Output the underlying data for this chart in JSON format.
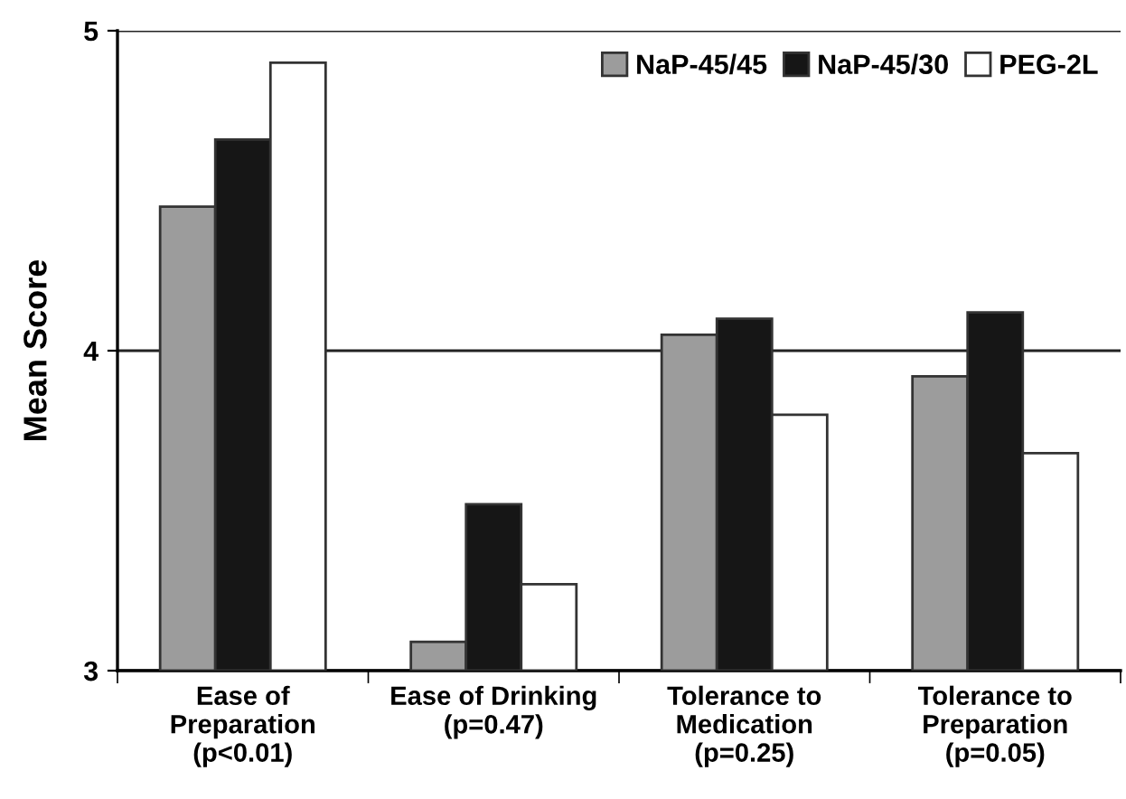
{
  "chart_data": {
    "type": "bar",
    "ylabel": "Mean Score",
    "categories": [
      "Ease of\nPreparation\n(p<0.01)",
      "Ease of Drinking\n(p=0.47)",
      "Tolerance to\nMedication\n(p=0.25)",
      "Tolerance to\nPreparation\n(p=0.05)"
    ],
    "series": [
      {
        "name": "NaP-45/45",
        "color": "#9c9c9c",
        "values": [
          4.45,
          3.09,
          4.05,
          3.92
        ]
      },
      {
        "name": "NaP-45/30",
        "color": "#161616",
        "values": [
          4.66,
          3.52,
          4.1,
          4.12
        ]
      },
      {
        "name": "PEG-2L",
        "color": "#ffffff",
        "values": [
          4.9,
          3.27,
          3.8,
          3.68
        ]
      }
    ],
    "ylim": [
      3,
      5
    ],
    "yticks": [
      3,
      4,
      5
    ],
    "grid": "y",
    "legend": "top right"
  }
}
